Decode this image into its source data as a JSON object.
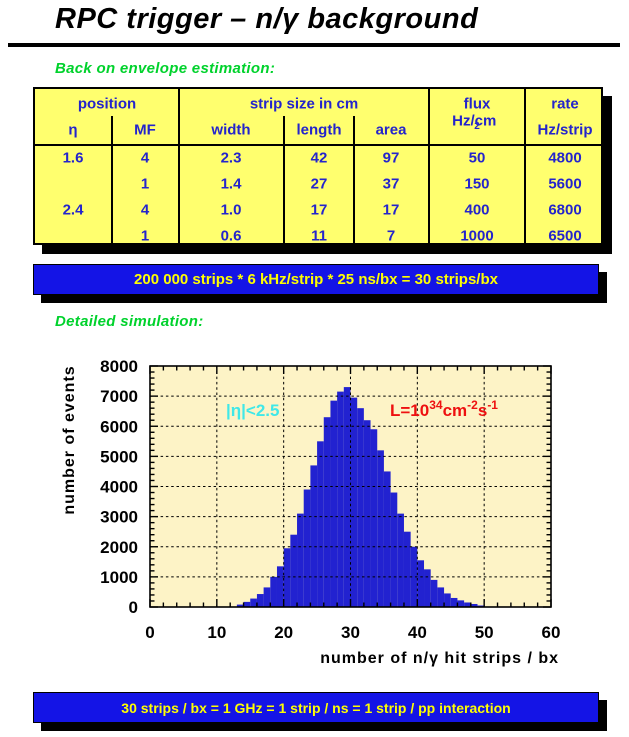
{
  "page": {
    "title": "RPC trigger – n/γ background"
  },
  "headings": {
    "estimation": "Back on envelope estimation:",
    "simulation": "Detailed simulation:"
  },
  "table": {
    "groups": {
      "position": "position",
      "strip_size": "strip size in cm",
      "flux": "flux",
      "rate": "rate"
    },
    "subheaders": {
      "eta": "η",
      "mf": "MF",
      "width": "width",
      "length": "length",
      "area": "area",
      "flux_unit_base": "Hz/cm",
      "flux_unit_exp": "2",
      "rate_unit": "Hz/strip"
    },
    "rows": [
      [
        "1.6",
        "4",
        "2.3",
        "42",
        "97",
        "50",
        "4800"
      ],
      [
        "",
        "1",
        "1.4",
        "27",
        "37",
        "150",
        "5600"
      ],
      [
        "2.4",
        "4",
        "1.0",
        "17",
        "17",
        "400",
        "6800"
      ],
      [
        "",
        "1",
        "0.6",
        "11",
        "7",
        "1000",
        "6500"
      ]
    ]
  },
  "banners": {
    "estimate": "200 000 strips * 6 kHz/strip * 25 ns/bx = 30 strips/bx",
    "rate": "30 strips / bx = 1 GHz = 1 strip / ns = 1 strip / pp interaction"
  },
  "colors": {
    "table_bg": "#ffff6e",
    "table_text": "#2424cc",
    "banner_bg": "#1414e6",
    "banner_text": "#ffff00",
    "heading_green": "#00d22c",
    "chart_bg": "#fdf3c6",
    "bar_blue": "#2222d0",
    "annotation_cyan": "#40e8e8",
    "annotation_red": "#ee1010"
  },
  "chart_data": {
    "type": "bar",
    "title": "",
    "xlabel": "number of n/γ hit strips / bx",
    "ylabel": "number of events",
    "xlim": [
      0,
      60
    ],
    "ylim": [
      0,
      8000
    ],
    "x_ticks": [
      0,
      10,
      20,
      30,
      40,
      50,
      60
    ],
    "y_ticks": [
      0,
      1000,
      2000,
      3000,
      4000,
      5000,
      6000,
      7000,
      8000
    ],
    "x_minor_step": 2,
    "y_minor_step": 200,
    "grid": "dashed",
    "legend": "none",
    "bin_width": 1,
    "bins_start": 13,
    "values": [
      80,
      170,
      280,
      430,
      650,
      1000,
      1350,
      1950,
      2400,
      3100,
      3900,
      4700,
      5500,
      6300,
      6850,
      7150,
      7300,
      6950,
      6600,
      6200,
      5900,
      5200,
      4500,
      3800,
      3100,
      2500,
      2000,
      1550,
      1250,
      900,
      650,
      450,
      300,
      220,
      150,
      100,
      50
    ],
    "annotations": [
      {
        "name": "eta-cut",
        "color": "#40e8e8",
        "parts": [
          {
            "text": "|η|<2.5"
          }
        ]
      },
      {
        "name": "luminosity",
        "color": "#ee1010",
        "parts": [
          {
            "text": "L=10"
          },
          {
            "text": "34",
            "sup": true
          },
          {
            "text": "cm"
          },
          {
            "text": "-2",
            "sup": true
          },
          {
            "text": "s"
          },
          {
            "text": "-1",
            "sup": true
          }
        ]
      }
    ]
  }
}
